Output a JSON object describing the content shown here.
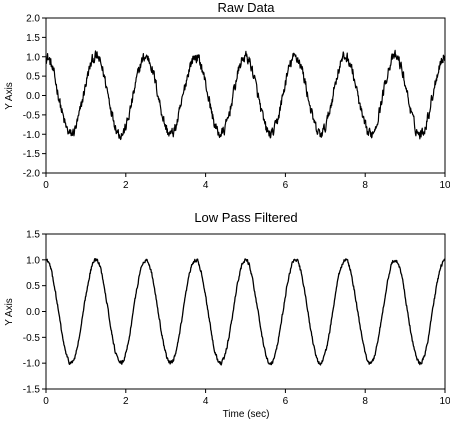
{
  "chart_data": [
    {
      "type": "line",
      "title": "Raw Data",
      "xlabel": "",
      "ylabel": "Y Axis",
      "xlim": [
        0,
        10
      ],
      "ylim": [
        -2.0,
        2.0
      ],
      "xticks": [
        0,
        2,
        4,
        6,
        8,
        10
      ],
      "xtick_labels": [
        "0",
        "2",
        "4",
        "6",
        "8",
        "10"
      ],
      "yticks": [
        -2.0,
        -1.5,
        -1.0,
        -0.5,
        0.0,
        0.5,
        1.0,
        1.5,
        2.0
      ],
      "ytick_labels": [
        "-2.0",
        "-1.5",
        "-1.0",
        "-0.5",
        "0.0",
        "0.5",
        "1.0",
        "1.5",
        "2.0"
      ],
      "grid": false,
      "legend": "none",
      "series": [
        {
          "signal": "sine",
          "amplitude": 1.0,
          "frequency_hz": 0.8,
          "phase_rad": 1.5708,
          "offset": 0.0,
          "noise_amplitude": 0.22,
          "line_color": "#000000",
          "x": [
            0.0,
            0.625,
            1.25,
            1.875,
            2.5,
            3.125,
            3.75,
            4.375,
            5.0,
            5.625,
            6.25,
            6.875,
            7.5,
            8.125,
            8.75,
            9.375,
            10.0
          ],
          "y": [
            1.0,
            -1.0,
            1.0,
            -1.0,
            1.0,
            -1.0,
            1.0,
            -1.0,
            1.0,
            -1.0,
            1.0,
            -1.0,
            1.0,
            -1.0,
            1.0,
            -1.0,
            1.0
          ]
        }
      ]
    },
    {
      "type": "line",
      "title": "Low Pass Filtered",
      "xlabel": "Time (sec)",
      "ylabel": "Y Axis",
      "xlim": [
        0,
        10
      ],
      "ylim": [
        -1.5,
        1.5
      ],
      "xticks": [
        0,
        2,
        4,
        6,
        8,
        10
      ],
      "xtick_labels": [
        "0",
        "2",
        "4",
        "6",
        "8",
        "10"
      ],
      "yticks": [
        -1.5,
        -1.0,
        -0.5,
        0.0,
        0.5,
        1.0,
        1.5
      ],
      "ytick_labels": [
        "-1.5",
        "-1.0",
        "-0.5",
        "0.0",
        "0.5",
        "1.0",
        "1.5"
      ],
      "grid": false,
      "legend": "none",
      "series": [
        {
          "signal": "sine",
          "amplitude": 1.0,
          "frequency_hz": 0.8,
          "phase_rad": 1.5708,
          "offset": 0.0,
          "noise_amplitude": 0.06,
          "line_color": "#000000",
          "x": [
            0.0,
            0.625,
            1.25,
            1.875,
            2.5,
            3.125,
            3.75,
            4.375,
            5.0,
            5.625,
            6.25,
            6.875,
            7.5,
            8.125,
            8.75,
            9.375,
            10.0
          ],
          "y": [
            1.0,
            -1.0,
            1.0,
            -1.0,
            1.0,
            -1.0,
            1.0,
            -1.0,
            1.0,
            -1.0,
            1.0,
            -1.0,
            1.0,
            -1.0,
            1.0,
            -1.0,
            1.0
          ]
        }
      ]
    }
  ]
}
